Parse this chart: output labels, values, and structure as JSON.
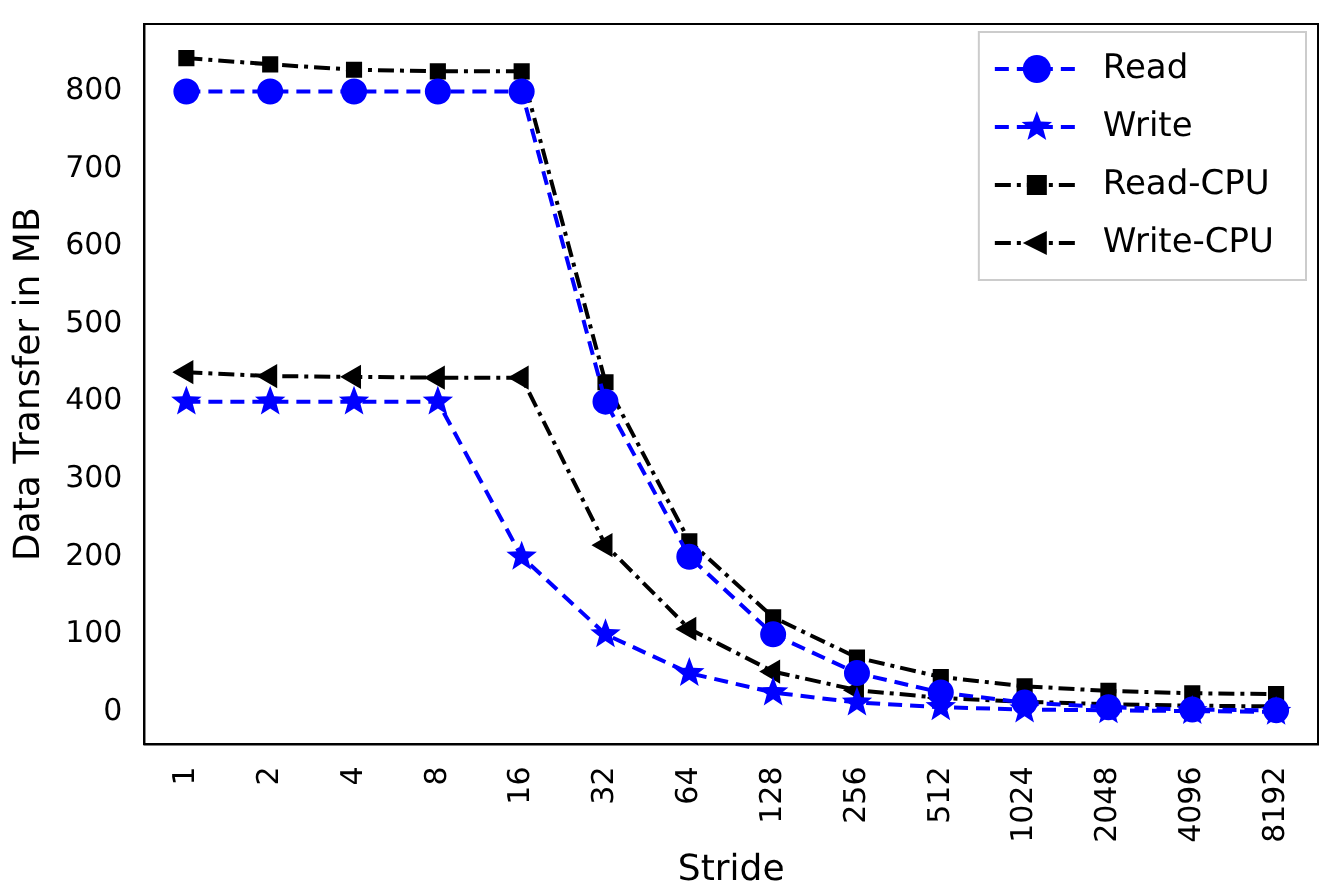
{
  "chart_data": {
    "type": "line",
    "xlabel": "Stride",
    "ylabel": "Data Transfer in MB",
    "categories": [
      "1",
      "2",
      "4",
      "8",
      "16",
      "32",
      "64",
      "128",
      "256",
      "512",
      "1024",
      "2048",
      "4096",
      "8192"
    ],
    "ylim": [
      -42,
      887
    ],
    "yticks": [
      0,
      100,
      200,
      300,
      400,
      500,
      600,
      700,
      800
    ],
    "grid": false,
    "legend": "top right",
    "series": [
      {
        "name": "Read",
        "color": "#0000ff",
        "marker": "circle",
        "line_style": "dashed",
        "values": [
          800,
          800,
          800,
          800,
          800,
          400,
          200,
          100,
          50,
          25,
          12,
          6,
          3,
          2
        ]
      },
      {
        "name": "Write",
        "color": "#0000ff",
        "marker": "star",
        "line_style": "dashed",
        "values": [
          400,
          400,
          400,
          400,
          200,
          100,
          50,
          25,
          12,
          6,
          3,
          2,
          1,
          0
        ]
      },
      {
        "name": "Read-CPU",
        "color": "#000000",
        "marker": "square",
        "line_style": "dashdot",
        "values": [
          843,
          835,
          828,
          826,
          826,
          425,
          220,
          122,
          70,
          45,
          33,
          27,
          24,
          23
        ]
      },
      {
        "name": "Write-CPU",
        "color": "#000000",
        "marker": "triangle",
        "line_style": "dashdot",
        "values": [
          438,
          433,
          432,
          431,
          431,
          215,
          107,
          52,
          28,
          18,
          13,
          10,
          8,
          7
        ]
      }
    ]
  }
}
